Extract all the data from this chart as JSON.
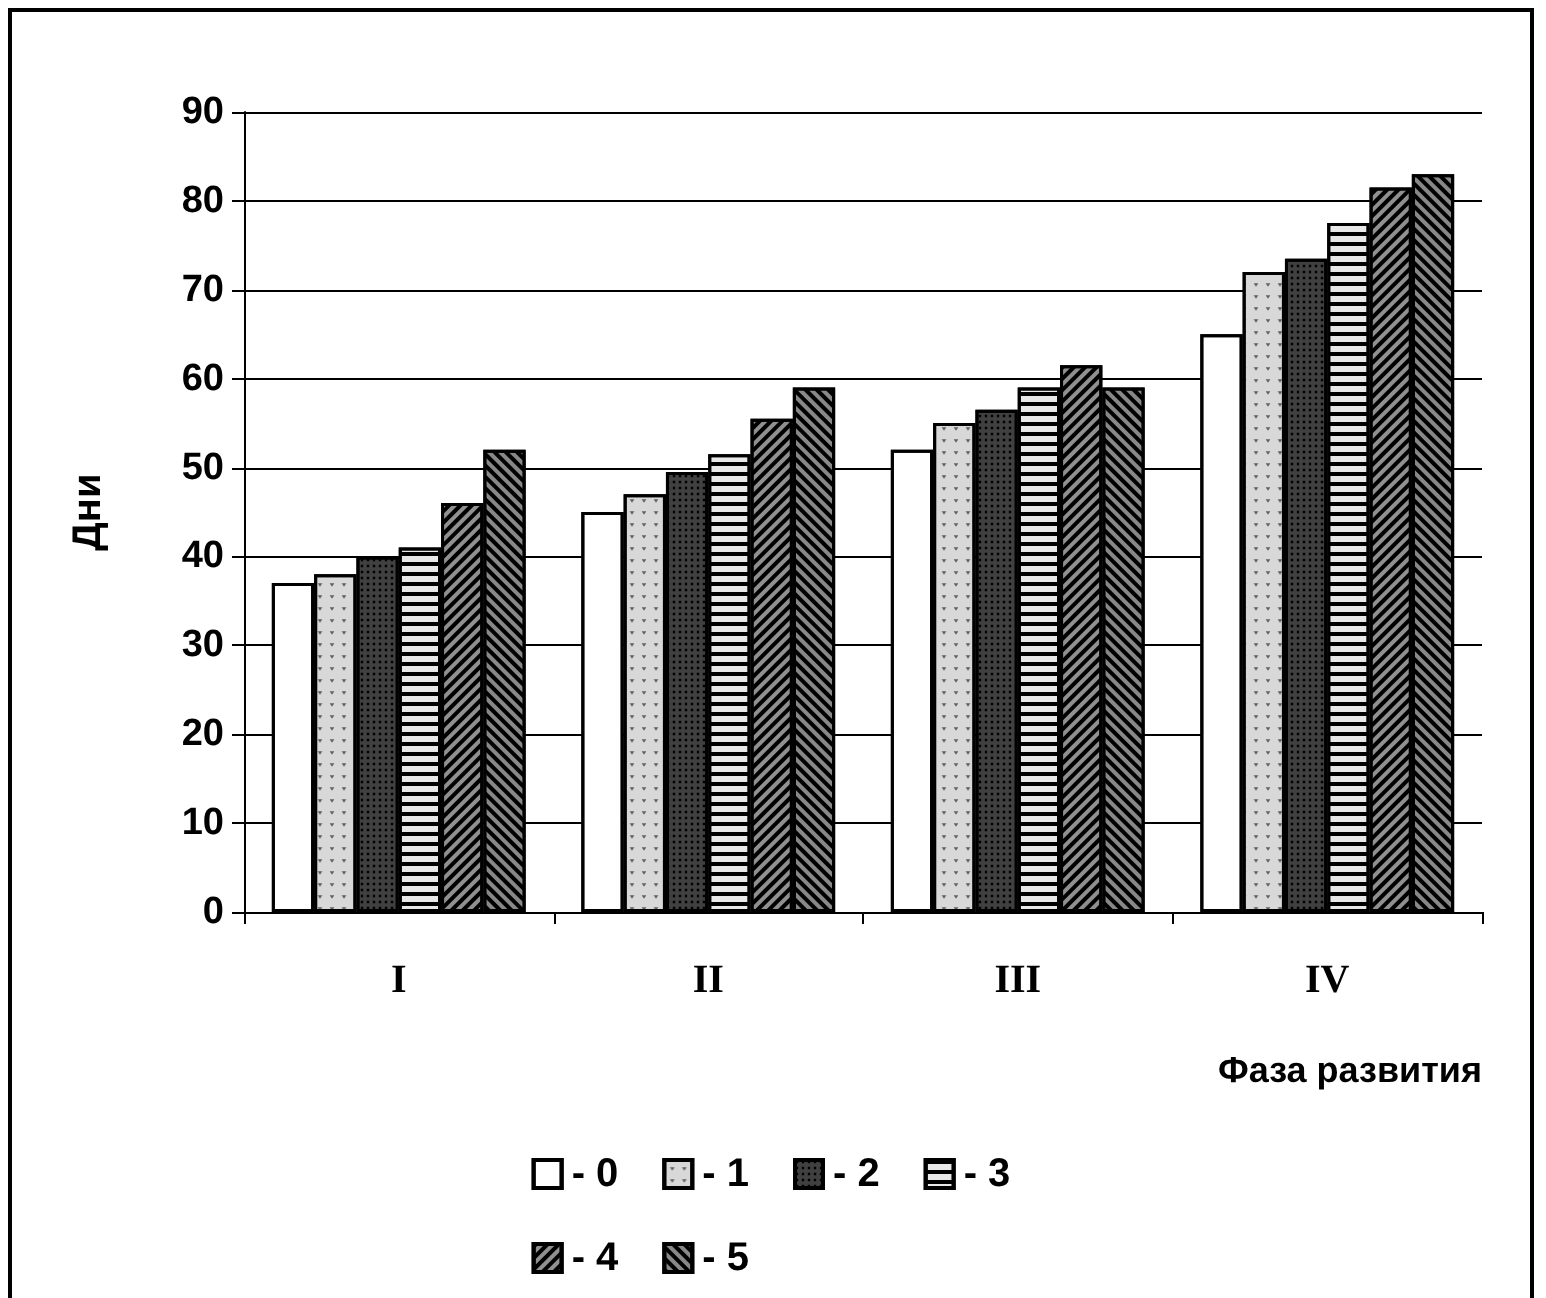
{
  "chart_data": {
    "type": "bar",
    "xlabel": "Фаза развития",
    "ylabel": "Дни",
    "categories": [
      "I",
      "II",
      "III",
      "IV"
    ],
    "series": [
      {
        "name": "- 0",
        "color": "#ffffff",
        "values": [
          37,
          45,
          52,
          65
        ]
      },
      {
        "name": "- 1",
        "color": "#d8d8d8",
        "values": [
          38,
          47,
          55,
          72
        ]
      },
      {
        "name": "- 2",
        "color": "#404040",
        "values": [
          40,
          49.5,
          56.5,
          73.5
        ]
      },
      {
        "name": "- 3",
        "color": "#e8e8e8",
        "values": [
          41,
          51.5,
          59,
          77.5
        ]
      },
      {
        "name": "- 4",
        "color": "#909090",
        "values": [
          46,
          55.5,
          61.5,
          81.5
        ]
      },
      {
        "name": "- 5",
        "color": "#888888",
        "values": [
          52,
          59,
          59,
          83
        ]
      }
    ],
    "ylim": [
      0,
      90
    ],
    "yticks": [
      0,
      10,
      20,
      30,
      40,
      50,
      60,
      70,
      80,
      90
    ],
    "grid": "y",
    "legend": "bottom"
  }
}
